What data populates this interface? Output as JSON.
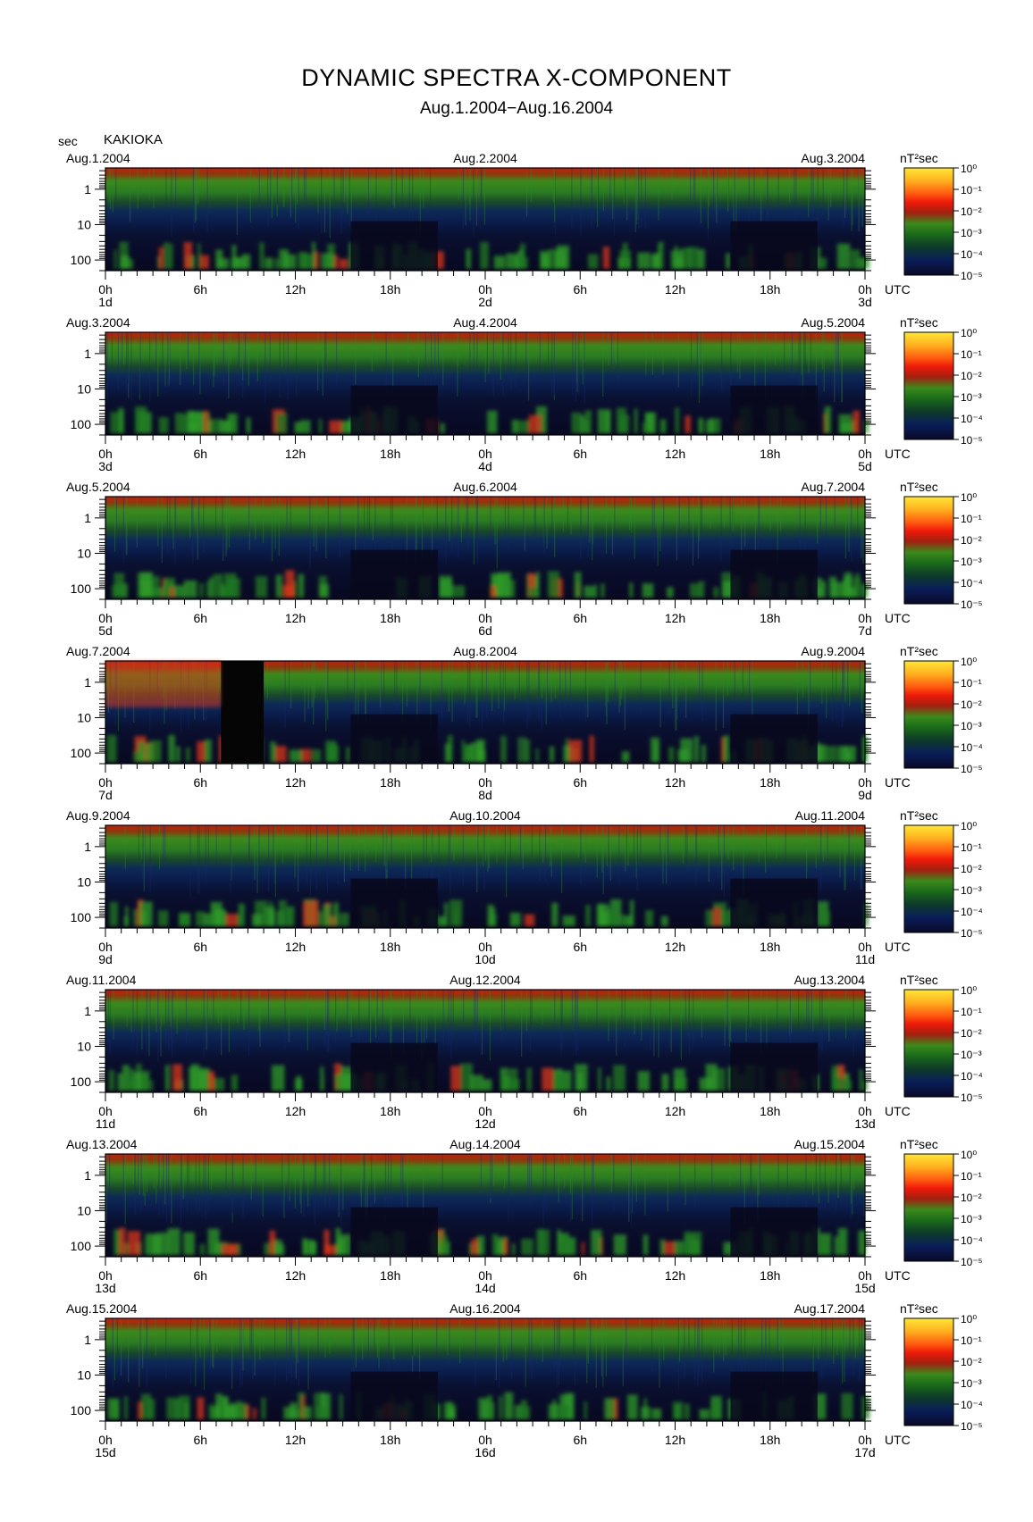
{
  "title": "DYNAMIC SPECTRA X-COMPONENT",
  "subtitle": "Aug.1.2004−Aug.16.2004",
  "y_unit": "sec",
  "station": "KAKIOKA",
  "x_unit": "UTC",
  "colorbar_unit": "nT²sec",
  "colorbar_ticks": [
    "10⁰",
    "10⁻¹",
    "10⁻²",
    "10⁻³",
    "10⁻⁴",
    "10⁻⁵"
  ],
  "colorbar_colors": [
    "#ffe838",
    "#ffb020",
    "#ff5a10",
    "#ee1a0a",
    "#b02010",
    "#5a7a10",
    "#2a9a2a",
    "#1a6a1a",
    "#0f3a2a",
    "#0a1e5a",
    "#0a0a28"
  ],
  "y_ticks": [
    "1",
    "10",
    "100"
  ],
  "x_ticks": [
    "0h",
    "6h",
    "12h",
    "18h",
    "0h",
    "6h",
    "12h",
    "18h",
    "0h"
  ],
  "chart_data": {
    "type": "heatmap",
    "title": "DYNAMIC SPECTRA X-COMPONENT",
    "subtitle": "Aug.1.2004−Aug.16.2004",
    "station": "KAKIOKA",
    "ylabel": "sec",
    "xlabel": "UTC",
    "colorbar_label": "nT²sec",
    "colorbar_range": [
      "10⁻⁵",
      "10⁰"
    ],
    "ylim": [
      0.25,
      200
    ],
    "y_scale": "log",
    "panels": [
      {
        "date_left": "Aug.1.2004",
        "date_mid": "Aug.2.2004",
        "date_right": "Aug.3.2004",
        "day_labels": [
          "1d",
          "2d",
          "3d"
        ]
      },
      {
        "date_left": "Aug.3.2004",
        "date_mid": "Aug.4.2004",
        "date_right": "Aug.5.2004",
        "day_labels": [
          "3d",
          "4d",
          "5d"
        ]
      },
      {
        "date_left": "Aug.5.2004",
        "date_mid": "Aug.6.2004",
        "date_right": "Aug.7.2004",
        "day_labels": [
          "5d",
          "6d",
          "7d"
        ]
      },
      {
        "date_left": "Aug.7.2004",
        "date_mid": "Aug.8.2004",
        "date_right": "Aug.9.2004",
        "day_labels": [
          "7d",
          "8d",
          "9d"
        ]
      },
      {
        "date_left": "Aug.9.2004",
        "date_mid": "Aug.10.2004",
        "date_right": "Aug.11.2004",
        "day_labels": [
          "9d",
          "10d",
          "11d"
        ]
      },
      {
        "date_left": "Aug.11.2004",
        "date_mid": "Aug.12.2004",
        "date_right": "Aug.13.2004",
        "day_labels": [
          "11d",
          "12d",
          "13d"
        ]
      },
      {
        "date_left": "Aug.13.2004",
        "date_mid": "Aug.14.2004",
        "date_right": "Aug.15.2004",
        "day_labels": [
          "13d",
          "14d",
          "15d"
        ]
      },
      {
        "date_left": "Aug.15.2004",
        "date_mid": "Aug.16.2004",
        "date_right": "Aug.17.2004",
        "day_labels": [
          "15d",
          "16d",
          "17d"
        ]
      }
    ]
  }
}
